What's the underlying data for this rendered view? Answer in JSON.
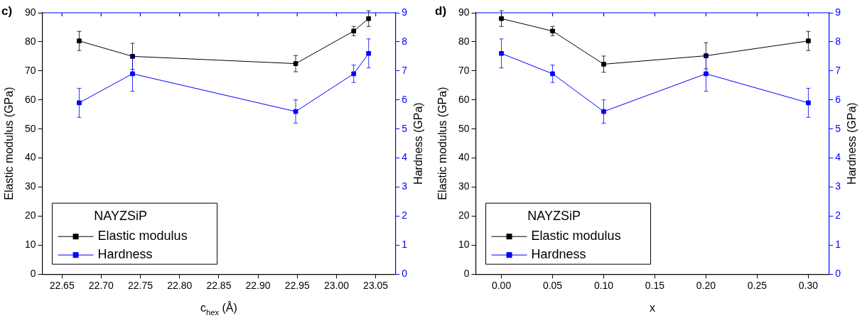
{
  "chart_data": [
    {
      "type": "line",
      "annotations": [
        "c)"
      ],
      "xlabel": "c$_{hex}$ (Å)",
      "ylabel": "Elastic modulus (GPa)",
      "y2label": "Hardness (GPa)",
      "legend_title": "NAYZSiP",
      "legend": "bottom left",
      "marker": "square",
      "grid": false,
      "xlim": [
        22.625,
        23.075
      ],
      "xticks": [
        22.65,
        {
          "value": 22.7,
          "label": "22.70"
        },
        {
          "value": 22.75,
          "label": "22.75"
        },
        {
          "value": 22.8,
          "label": "22.80"
        },
        22.85,
        {
          "value": 22.9,
          "label": "22.90"
        },
        22.95,
        {
          "value": 23.0,
          "label": "23.00"
        },
        23.05
      ],
      "ylim": [
        0,
        90
      ],
      "yticks": [
        0,
        10,
        20,
        30,
        40,
        50,
        60,
        70,
        80,
        90
      ],
      "y2lim": [
        0,
        9
      ],
      "y2ticks": [
        0,
        1,
        2,
        3,
        4,
        5,
        6,
        7,
        8,
        9
      ],
      "series": [
        {
          "name": "Elastic modulus",
          "color": "#000000",
          "x": [
            22.672,
            22.74,
            22.948,
            23.022,
            23.041
          ],
          "values": [
            80.3,
            75.0,
            72.5,
            83.7,
            88.0
          ],
          "errors": [
            3.3,
            4.5,
            2.8,
            1.6,
            2.7
          ]
        },
        {
          "name": "Hardness",
          "color": "#0000ff",
          "axis": "y2",
          "x": [
            22.672,
            22.74,
            22.948,
            23.022,
            23.041
          ],
          "values": [
            5.9,
            6.9,
            5.6,
            6.9,
            7.6
          ],
          "errors": [
            0.5,
            0.6,
            0.4,
            0.3,
            0.5
          ]
        }
      ]
    },
    {
      "type": "line",
      "annotations": [
        "d)"
      ],
      "xlabel": "x",
      "ylabel": "Elastic modulus (GPa)",
      "y2label": "Hardness (GPa)",
      "legend_title": "NAYZSiP",
      "legend": "bottom left",
      "marker": "square",
      "grid": false,
      "xlim": [
        -0.025,
        0.32
      ],
      "xticks": [
        {
          "value": 0,
          "label": "0.00"
        },
        0.05,
        {
          "value": 0.1,
          "label": "0.10"
        },
        0.15,
        {
          "value": 0.2,
          "label": "0.20"
        },
        0.25,
        {
          "value": 0.3,
          "label": "0.30"
        }
      ],
      "ylim": [
        0,
        90
      ],
      "yticks": [
        0,
        10,
        20,
        30,
        40,
        50,
        60,
        70,
        80,
        90
      ],
      "y2lim": [
        0,
        9
      ],
      "y2ticks": [
        0,
        1,
        2,
        3,
        4,
        5,
        6,
        7,
        8,
        9
      ],
      "series": [
        {
          "name": "Elastic modulus",
          "color": "#000000",
          "x": [
            0,
            0.05,
            0.1,
            0.2,
            0.3
          ],
          "values": [
            88.0,
            83.7,
            72.3,
            75.2,
            80.3
          ],
          "errors": [
            2.7,
            1.6,
            2.8,
            4.5,
            3.3
          ]
        },
        {
          "name": "Hardness",
          "color": "#0000ff",
          "axis": "y2",
          "x": [
            0,
            0.05,
            0.1,
            0.2,
            0.3
          ],
          "values": [
            7.6,
            6.9,
            5.6,
            6.9,
            5.9
          ],
          "errors": [
            0.5,
            0.3,
            0.4,
            0.6,
            0.5
          ]
        }
      ]
    }
  ]
}
